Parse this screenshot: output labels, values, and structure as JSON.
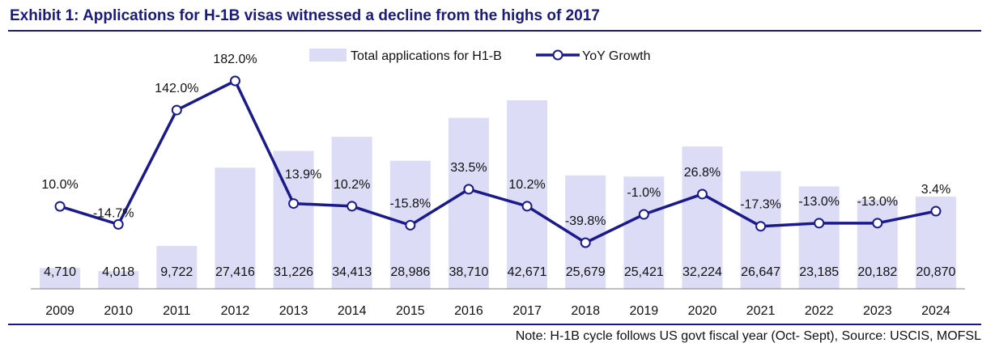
{
  "title": "Exhibit 1: Applications for H-1B visas witnessed a decline from the highs of 2017",
  "note": "Note: H-1B cycle follows US govt fiscal year (Oct- Sept), Source: USCIS, MOFSL",
  "colors": {
    "bar": "#dcdcf7",
    "line": "#1a1a8c",
    "title": "#1a1a7e"
  },
  "chart_data": {
    "type": "bar",
    "categories": [
      "2009",
      "2010",
      "2011",
      "2012",
      "2013",
      "2014",
      "2015",
      "2016",
      "2017",
      "2018",
      "2019",
      "2020",
      "2021",
      "2022",
      "2023",
      "2024"
    ],
    "series": [
      {
        "name": "Total applications for H1-B",
        "type": "bar",
        "values": [
          4710,
          4018,
          9722,
          27416,
          31226,
          34413,
          28986,
          38710,
          42671,
          25679,
          25421,
          32224,
          26647,
          23185,
          20182,
          20870
        ],
        "labels": [
          "4,710",
          "4,018",
          "9,722",
          "27,416",
          "31,226",
          "34,413",
          "28,986",
          "38,710",
          "42,671",
          "25,679",
          "25,421",
          "32,224",
          "26,647",
          "23,185",
          "20,182",
          "20,870"
        ]
      },
      {
        "name": "YoY Growth",
        "type": "line",
        "values": [
          10.0,
          -14.7,
          142.0,
          182.0,
          13.9,
          10.2,
          -15.8,
          33.5,
          10.2,
          -39.8,
          -1.0,
          26.8,
          -17.3,
          -13.0,
          -13.0,
          3.4
        ],
        "labels": [
          "10.0%",
          "-14.7%",
          "142.0%",
          "182.0%",
          "13.9%",
          "10.2%",
          "-15.8%",
          "33.5%",
          "10.2%",
          "-39.8%",
          "-1.0%",
          "26.8%",
          "-17.3%",
          "-13.0%",
          "-13.0%",
          "3.4%"
        ]
      }
    ],
    "legend_position": "top-center",
    "grid": false
  }
}
